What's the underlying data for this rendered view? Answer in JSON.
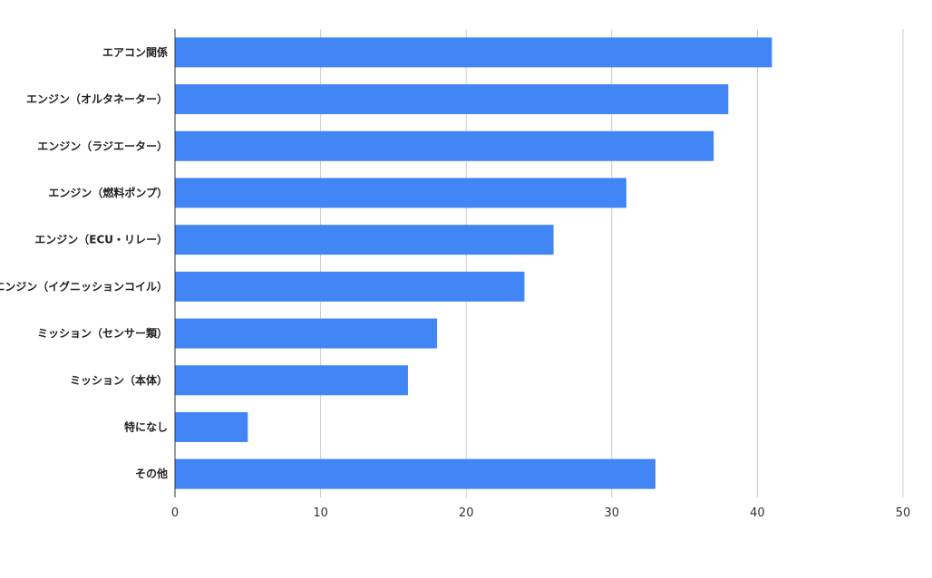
{
  "chart_data": {
    "type": "bar",
    "orientation": "horizontal",
    "categories": [
      "エアコン関係",
      "エンジン（オルタネーター）",
      "エンジン（ラジエーター）",
      "エンジン（燃料ポンプ）",
      "エンジン（ECU・リレー）",
      "エンジン（イグニッションコイル）",
      "ミッション（センサー類）",
      "ミッション（本体）",
      "特になし",
      "その他"
    ],
    "values": [
      41,
      38,
      37,
      31,
      26,
      24,
      18,
      16,
      5,
      33
    ],
    "xlim": [
      0,
      50
    ],
    "x_ticks": [
      0,
      10,
      20,
      30,
      40,
      50
    ],
    "grid": true,
    "bar_color": "#4285f4",
    "title": "",
    "xlabel": "",
    "ylabel": ""
  }
}
